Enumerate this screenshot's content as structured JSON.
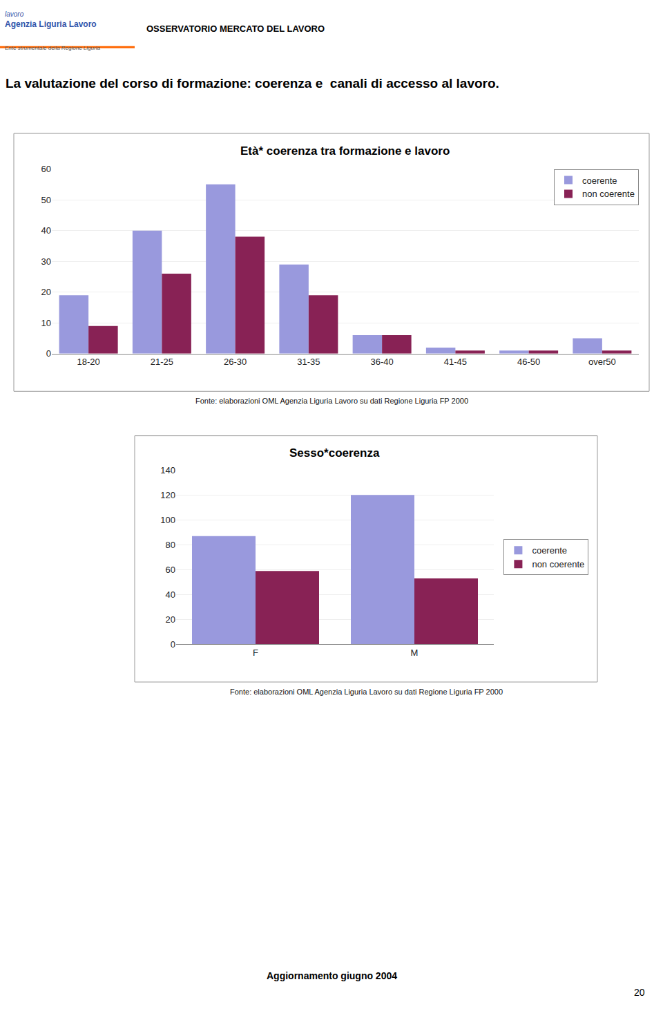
{
  "title": "La valutazione del corso di formazione: coerenza e  canali di accesso al lavoro.",
  "annotations": [
    "lavoro",
    "Agenzia Liguria Lavoro",
    "Ente strumentale della Regione Liguria",
    "OSSERVATORIO MERCATO DEL LAVORO",
    "Aggiornamento giugno 2004",
    "20"
  ],
  "chart_data": [
    {
      "type": "bar",
      "title": "Età* coerenza tra formazione e lavoro",
      "categories": [
        "18-20",
        "21-25",
        "26-30",
        "31-35",
        "36-40",
        "41-45",
        "46-50",
        "over50"
      ],
      "series": [
        {
          "name": "coerente",
          "color": "#9999DD",
          "values": [
            19,
            40,
            55,
            29,
            6,
            2,
            1,
            5
          ]
        },
        {
          "name": "non coerente",
          "color": "#882255",
          "values": [
            9,
            26,
            38,
            19,
            6,
            1,
            1,
            1
          ]
        }
      ],
      "ylim": [
        0,
        60
      ],
      "yticks": [
        0,
        10,
        20,
        30,
        40,
        50,
        60
      ],
      "grid": true,
      "legend": "upper right",
      "annotations": [
        "Fonte: elaborazioni OML Agenzia Liguria Lavoro su dati Regione Liguria FP 2000"
      ]
    },
    {
      "type": "bar",
      "title": "Sesso*coerenza",
      "categories": [
        "F",
        "M"
      ],
      "series": [
        {
          "name": "coerente",
          "color": "#9999DD",
          "values": [
            87,
            120
          ]
        },
        {
          "name": "non coerente",
          "color": "#882255",
          "values": [
            59,
            53
          ]
        }
      ],
      "ylim": [
        0,
        140
      ],
      "yticks": [
        0,
        20,
        40,
        60,
        80,
        100,
        120,
        140
      ],
      "grid": true,
      "legend": "right",
      "annotations": [
        "Fonte: elaborazioni OML Agenzia Liguria Lavoro su dati Regione Liguria FP 2000"
      ]
    }
  ]
}
